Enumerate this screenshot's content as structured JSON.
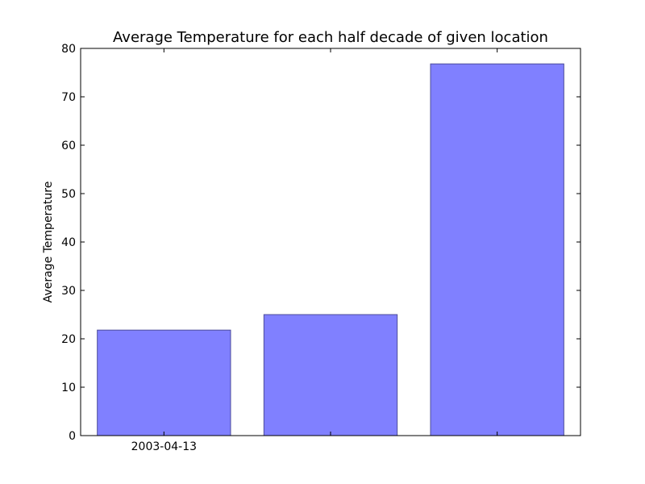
{
  "chart_data": {
    "type": "bar",
    "title": "Average Temperature for each half decade of given location",
    "xlabel": "",
    "ylabel": "Average Temperature",
    "categories": [
      "2003-04-13",
      "",
      ""
    ],
    "values": [
      21.8,
      25.0,
      76.8
    ],
    "ylim": [
      0,
      80
    ],
    "yticks": [
      0,
      10,
      20,
      30,
      40,
      50,
      60,
      70,
      80
    ],
    "grid": false,
    "legend": "none",
    "bar_color": "#8080ff",
    "bar_edge_color": "#4d4d99"
  }
}
